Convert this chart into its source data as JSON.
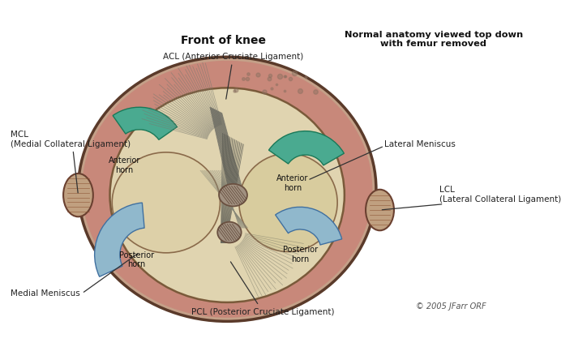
{
  "bg_color": "#ffffff",
  "title_left": "Front of knee",
  "title_right": "Normal anatomy viewed top down\nwith femur removed",
  "copyright": "© 2005 JFarr ORF",
  "labels": {
    "ACL": "ACL (Anterior Cruciate Ligament)",
    "PCL": "PCL (Posterior Cruciate Ligament)",
    "MCL": "MCL\n(Medial Collateral Ligament)",
    "LCL": "LCL\n(Lateral Collateral Ligament)",
    "medial_meniscus": "Medial Meniscus",
    "lateral_meniscus": "Lateral Meniscus",
    "ant_horn_left": "Anterior\nhorn",
    "ant_horn_right": "Anterior\nhorn",
    "post_horn_left": "Posterior\nhorn",
    "post_horn_right": "Posterior\nhorn"
  },
  "colors": {
    "outer_shell": "#c4a088",
    "pink_rim": "#c8887a",
    "bone_cream": "#e0d4b0",
    "teal_meniscus": "#4aaa90",
    "blue_posterior": "#90b8cc",
    "ligament_gray": "#888888",
    "text_color": "#222222",
    "mcl_lcl": "#c0a080",
    "bundle": "#a09080",
    "strand": "#777770",
    "outer_edge": "#5a3a2a",
    "inner_edge": "#7a5a3a",
    "bundle_edge": "#6a5040"
  }
}
